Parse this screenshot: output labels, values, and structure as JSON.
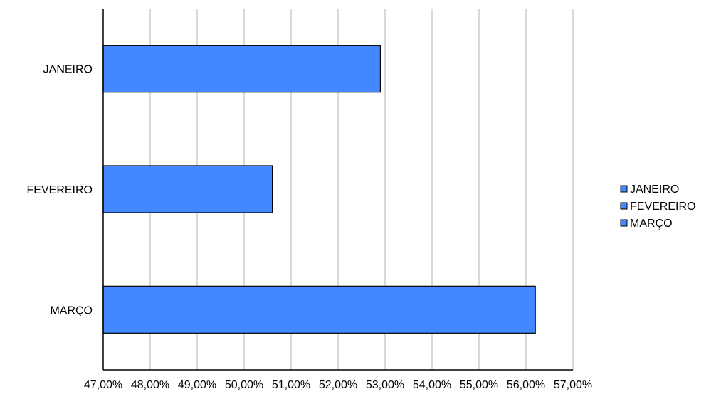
{
  "chart_data": {
    "type": "bar",
    "orientation": "horizontal",
    "categories": [
      "JANEIRO",
      "FEVEREIRO",
      "MARÇO"
    ],
    "values": [
      52.9,
      50.6,
      56.2
    ],
    "value_unit": "%",
    "xlim": [
      47,
      57
    ],
    "x_ticks": [
      "47,00%",
      "48,00%",
      "49,00%",
      "50,00%",
      "51,00%",
      "52,00%",
      "53,00%",
      "54,00%",
      "55,00%",
      "56,00%",
      "57,00%"
    ],
    "grid": "vertical",
    "legend": {
      "placement": "right",
      "entries": [
        "JANEIRO",
        "FEVEREIRO",
        "MARÇO"
      ]
    },
    "bar_color": "#4488ff",
    "bar_edge_color": "#000000",
    "grid_color": "#b3b3b3"
  }
}
